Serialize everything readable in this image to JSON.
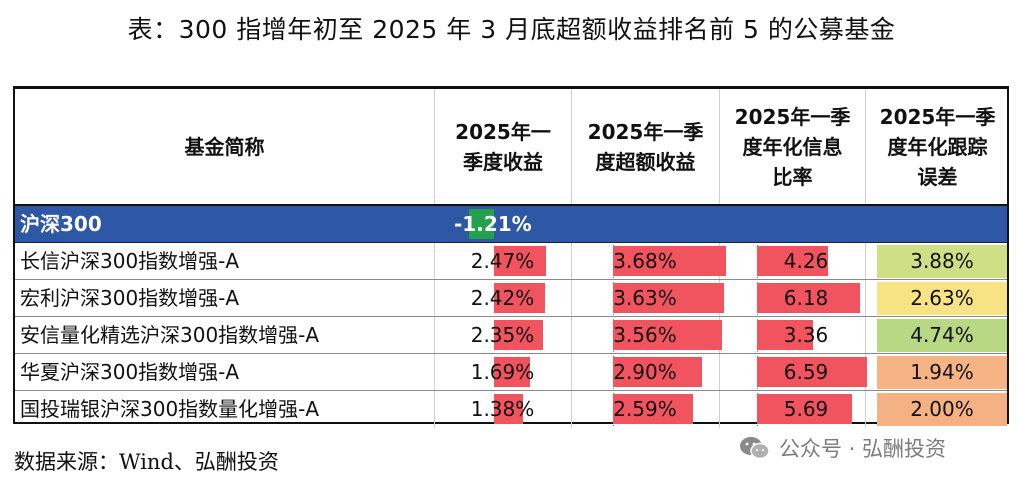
{
  "title": "表：300 指增年初至 2025 年 3 月底超额收益排名前 5 的公募基金",
  "source_note": "数据来源：Wind、弘酬投资",
  "watermark": "公众号 · 弘酬投资",
  "colors": {
    "header_band": "#2e58a5",
    "negative_bar": "#22a04b",
    "positive_bar": "#f2545f",
    "te_scale": [
      "#f5e68a",
      "#cfdf86",
      "#f7b988",
      "#f5b083"
    ]
  },
  "chart_data": {
    "type": "table",
    "columns": [
      "基金简称",
      "2025年一季度收益",
      "2025年一季度超额收益",
      "2025年一季度年化信息比率",
      "2025年一季度年化跟踪误差"
    ],
    "header_lines": [
      [
        "基金简称"
      ],
      [
        "2025年一",
        "季度收益"
      ],
      [
        "2025年一季",
        "度超额收益"
      ],
      [
        "2025年一季",
        "度年化信息",
        "比率"
      ],
      [
        "2025年一季",
        "度年化跟踪",
        "误差"
      ]
    ],
    "benchmark": {
      "name": "沪深300",
      "return": "-1.21%",
      "return_value": -1.21
    },
    "rows": [
      {
        "name": "长信沪深300指数增强-A",
        "ret": "2.47%",
        "ret_v": 2.47,
        "excess": "3.68%",
        "excess_v": 3.68,
        "ir": "4.26",
        "ir_v": 4.26,
        "te": "3.88%",
        "te_v": 3.88,
        "te_color": "#cfdf86"
      },
      {
        "name": "宏利沪深300指数增强-A",
        "ret": "2.42%",
        "ret_v": 2.42,
        "excess": "3.63%",
        "excess_v": 3.63,
        "ir": "6.18",
        "ir_v": 6.18,
        "te": "2.63%",
        "te_v": 2.63,
        "te_color": "#f7e383"
      },
      {
        "name": "安信量化精选沪深300指数增强-A",
        "ret": "2.35%",
        "ret_v": 2.35,
        "excess": "3.56%",
        "excess_v": 3.56,
        "ir": "3.36",
        "ir_v": 3.36,
        "te": "4.74%",
        "te_v": 4.74,
        "te_color": "#b8d884"
      },
      {
        "name": "华夏沪深300指数增强-A",
        "ret": "1.69%",
        "ret_v": 1.69,
        "excess": "2.90%",
        "excess_v": 2.9,
        "ir": "6.59",
        "ir_v": 6.59,
        "te": "1.94%",
        "te_v": 1.94,
        "te_color": "#f7b384"
      },
      {
        "name": "国投瑞银沪深300指数量化增强-A",
        "ret": "1.38%",
        "ret_v": 1.38,
        "excess": "2.59%",
        "excess_v": 2.59,
        "ir": "5.69",
        "ir_v": 5.69,
        "te": "2.00%",
        "te_v": 2.0,
        "te_color": "#f4b183"
      }
    ]
  }
}
